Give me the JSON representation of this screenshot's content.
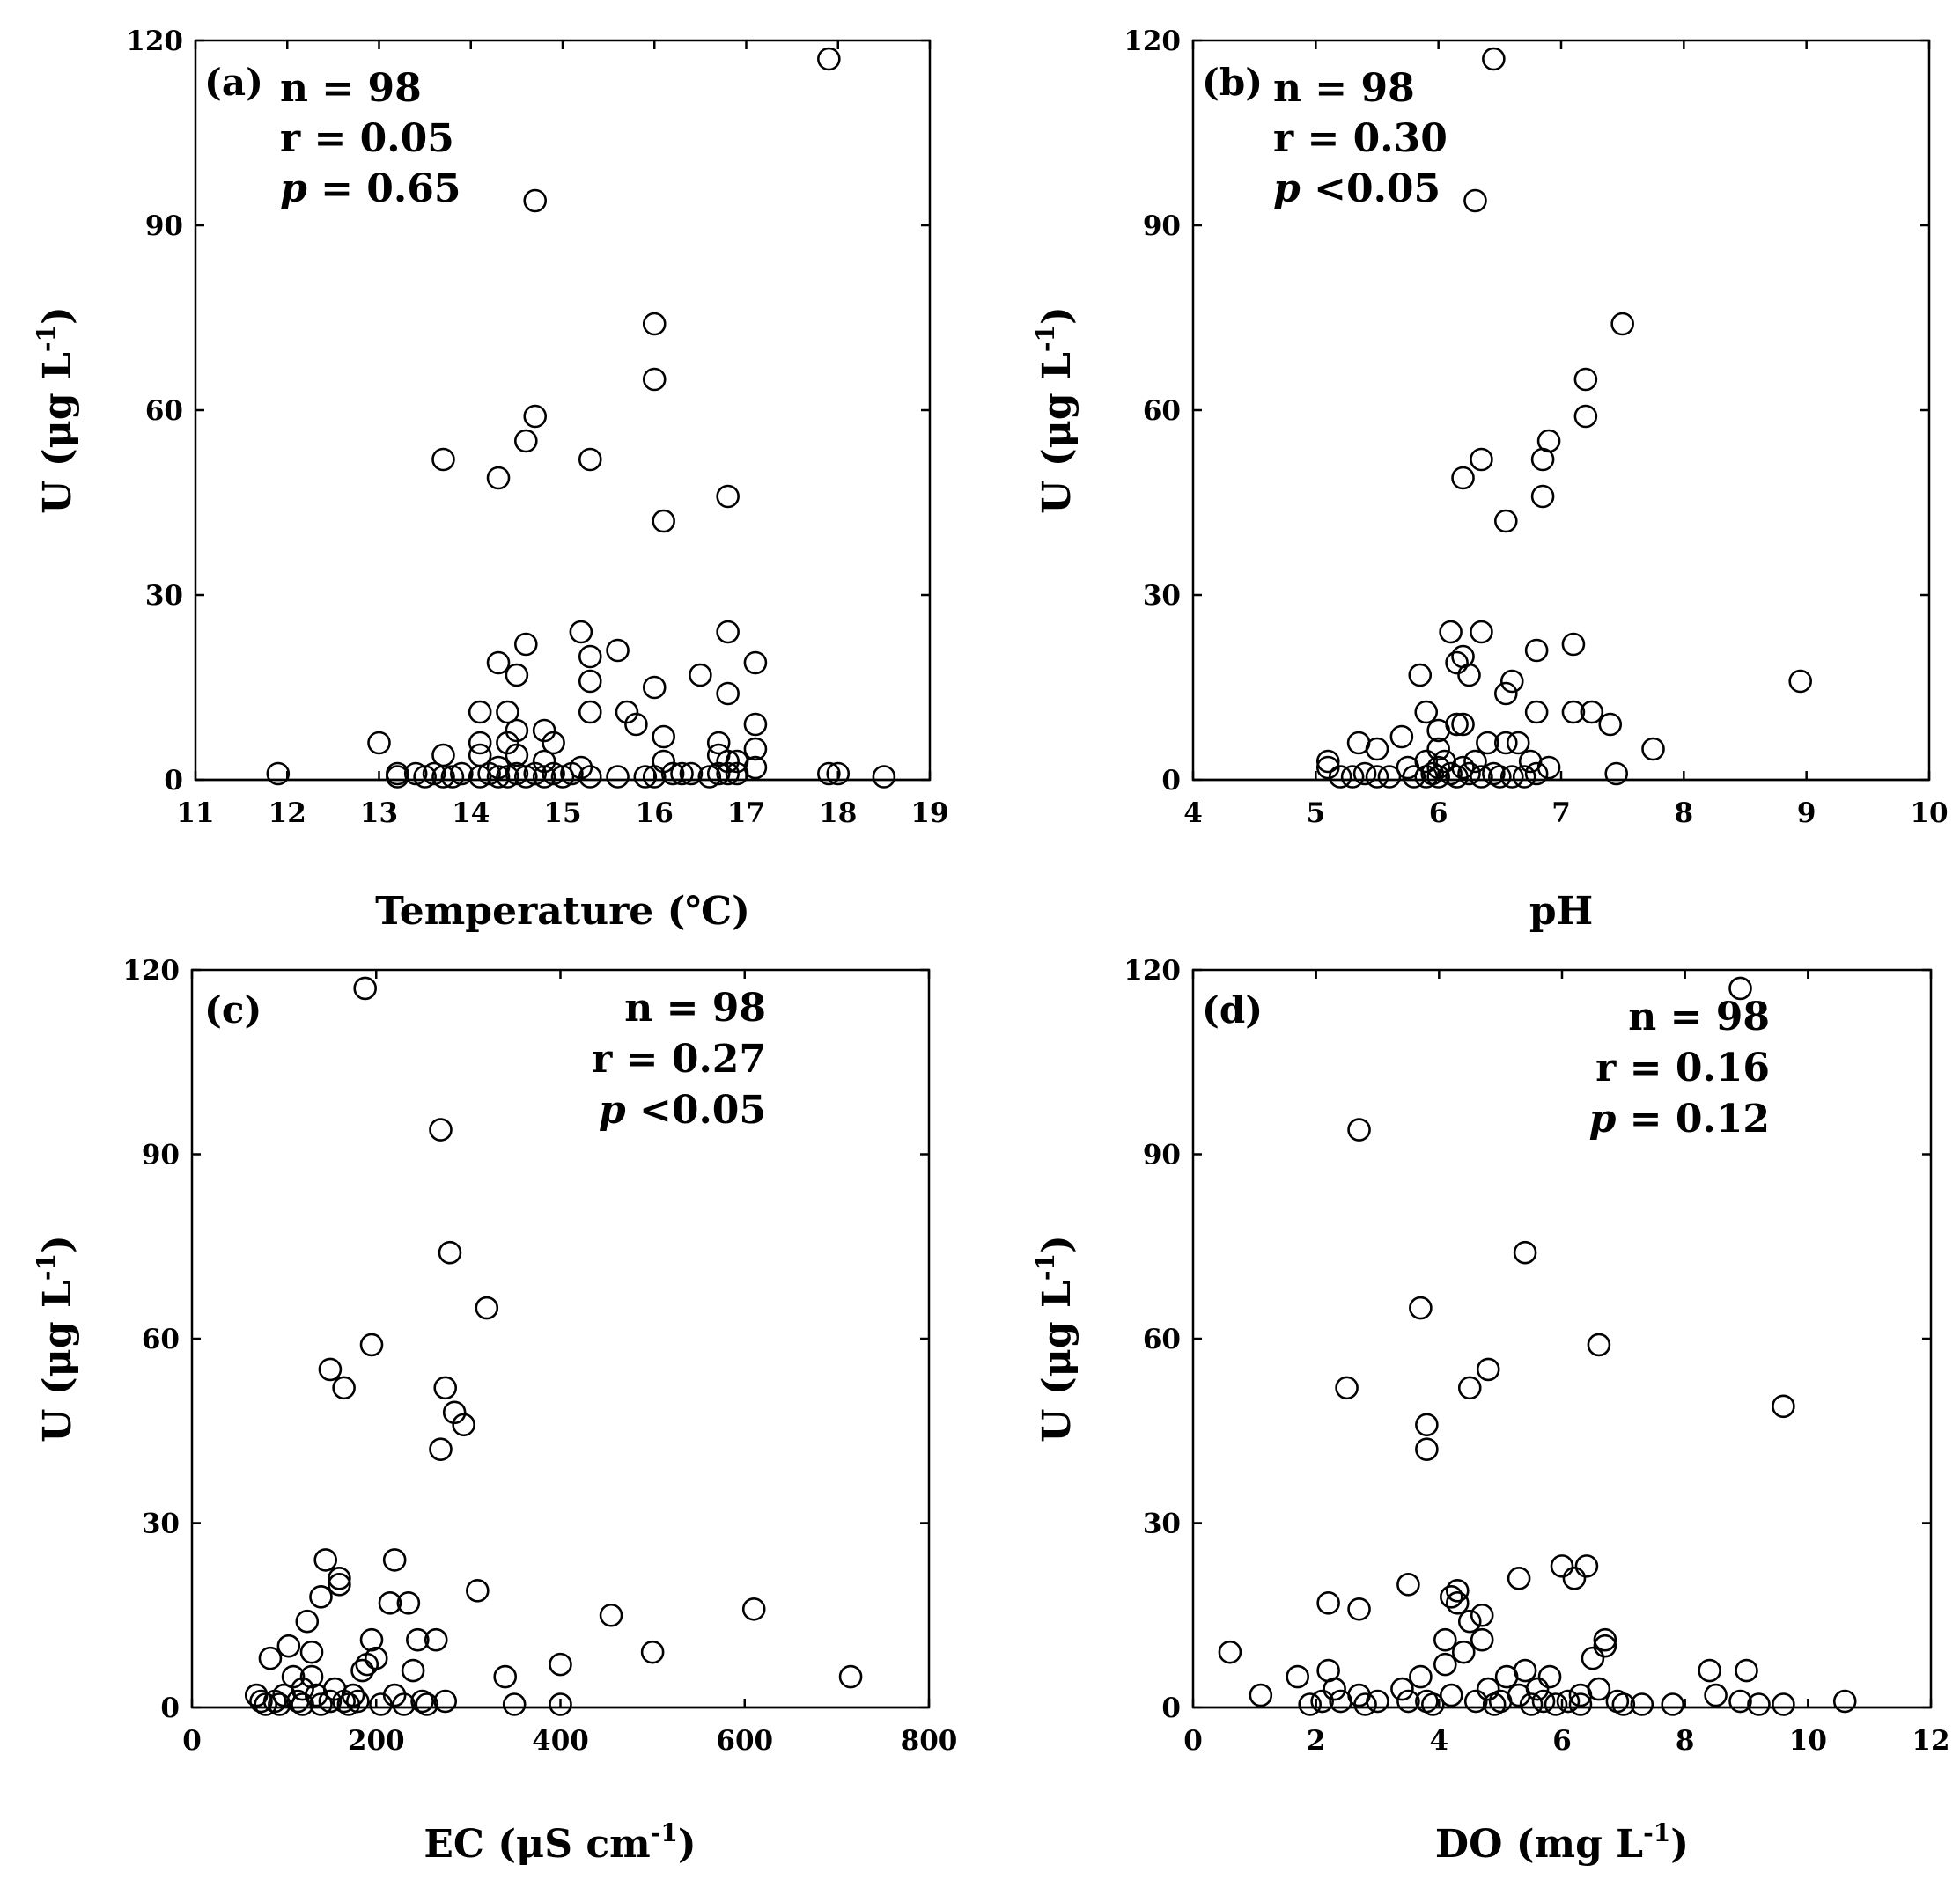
{
  "figure": {
    "y_axis_label": "U (μg L",
    "y_axis_label_sup": "-1",
    "y_axis_label_end": ")"
  },
  "chart_data": [
    {
      "type": "scatter",
      "panel": "(a)",
      "xlabel": "Temperature (℃)",
      "xlabel_sup": "",
      "xlabel_end": "",
      "ylabel": "U (μg L-1)",
      "xlim": [
        11,
        19
      ],
      "ylim": [
        0,
        120
      ],
      "xticks": [
        11,
        12,
        13,
        14,
        15,
        16,
        17,
        18,
        19
      ],
      "yticks": [
        0,
        30,
        60,
        90,
        120
      ],
      "stats": {
        "n": "n = 98",
        "r": "r = 0.05",
        "p_symbol": "p",
        "p_value": " = 0.65"
      },
      "stats_position": "top-left",
      "points": [
        [
          11.9,
          1
        ],
        [
          13,
          6
        ],
        [
          13.2,
          1
        ],
        [
          13.2,
          0.5
        ],
        [
          13.4,
          1
        ],
        [
          13.5,
          0.5
        ],
        [
          13.6,
          1
        ],
        [
          13.7,
          0.5
        ],
        [
          13.7,
          4
        ],
        [
          13.8,
          0.5
        ],
        [
          13.9,
          1
        ],
        [
          14.1,
          11
        ],
        [
          14.1,
          6
        ],
        [
          14.1,
          4
        ],
        [
          14.1,
          0.5
        ],
        [
          14.2,
          1
        ],
        [
          14.3,
          0.5
        ],
        [
          14.3,
          19
        ],
        [
          14.3,
          2
        ],
        [
          14.4,
          11
        ],
        [
          14.4,
          6
        ],
        [
          14.4,
          0.5
        ],
        [
          14.5,
          17
        ],
        [
          14.5,
          8
        ],
        [
          14.5,
          4
        ],
        [
          14.5,
          1
        ],
        [
          14.6,
          22
        ],
        [
          14.6,
          0.5
        ],
        [
          14.7,
          1
        ],
        [
          14.8,
          8
        ],
        [
          14.8,
          3
        ],
        [
          14.8,
          0.5
        ],
        [
          14.9,
          6
        ],
        [
          14.9,
          1
        ],
        [
          15,
          0.5
        ],
        [
          15.1,
          1
        ],
        [
          15.2,
          24
        ],
        [
          15.2,
          2
        ],
        [
          15.3,
          20
        ],
        [
          15.3,
          16
        ],
        [
          15.3,
          11
        ],
        [
          15.3,
          0.5
        ],
        [
          15.6,
          21
        ],
        [
          15.6,
          0.5
        ],
        [
          15.7,
          11
        ],
        [
          15.8,
          9
        ],
        [
          15.9,
          0.5
        ],
        [
          16,
          15
        ],
        [
          16,
          0.5
        ],
        [
          16.1,
          7
        ],
        [
          16.1,
          3
        ],
        [
          16.2,
          1
        ],
        [
          16.3,
          1
        ],
        [
          16.4,
          1
        ],
        [
          16.5,
          17
        ],
        [
          16.6,
          0.5
        ],
        [
          16.7,
          6
        ],
        [
          16.7,
          4
        ],
        [
          16.7,
          1
        ],
        [
          16.8,
          24
        ],
        [
          16.8,
          14
        ],
        [
          16.8,
          3
        ],
        [
          16.8,
          1
        ],
        [
          16.9,
          3
        ],
        [
          16.9,
          1
        ],
        [
          17.1,
          19
        ],
        [
          17.1,
          9
        ],
        [
          17.1,
          5
        ],
        [
          17.1,
          2
        ],
        [
          17.9,
          1
        ],
        [
          18,
          1
        ],
        [
          18.5,
          0.5
        ],
        [
          13.7,
          52
        ],
        [
          14.3,
          49
        ],
        [
          14.6,
          55
        ],
        [
          14.7,
          59
        ],
        [
          15.3,
          52
        ],
        [
          16,
          74
        ],
        [
          16,
          65
        ],
        [
          16.1,
          42
        ],
        [
          16.8,
          46
        ],
        [
          14.7,
          94
        ],
        [
          17.9,
          117
        ]
      ]
    },
    {
      "type": "scatter",
      "panel": "(b)",
      "xlabel": "pH",
      "xlabel_sup": "",
      "xlabel_end": "",
      "ylabel": "U (μg L-1)",
      "xlim": [
        4,
        10
      ],
      "ylim": [
        0,
        120
      ],
      "xticks": [
        4,
        5,
        6,
        7,
        8,
        9,
        10
      ],
      "yticks": [
        0,
        30,
        60,
        90,
        120
      ],
      "stats": {
        "n": "n = 98",
        "r": "r = 0.30",
        "p_symbol": "p",
        "p_value": " <0.05"
      },
      "stats_position": "top-left",
      "points": [
        [
          5.1,
          3
        ],
        [
          5.1,
          2
        ],
        [
          5.2,
          0.5
        ],
        [
          5.3,
          0.5
        ],
        [
          5.35,
          6
        ],
        [
          5.4,
          1
        ],
        [
          5.5,
          5
        ],
        [
          5.5,
          0.5
        ],
        [
          5.6,
          0.5
        ],
        [
          5.7,
          7
        ],
        [
          5.75,
          2
        ],
        [
          5.8,
          0.5
        ],
        [
          5.85,
          17
        ],
        [
          5.9,
          11
        ],
        [
          5.9,
          3
        ],
        [
          5.9,
          0.5
        ],
        [
          5.95,
          1
        ],
        [
          6,
          8
        ],
        [
          6,
          5
        ],
        [
          6,
          2
        ],
        [
          6,
          0.5
        ],
        [
          6.05,
          3
        ],
        [
          6.1,
          24
        ],
        [
          6.1,
          1
        ],
        [
          6.15,
          19
        ],
        [
          6.15,
          9
        ],
        [
          6.15,
          0.5
        ],
        [
          6.2,
          20
        ],
        [
          6.2,
          9
        ],
        [
          6.2,
          2
        ],
        [
          6.25,
          17
        ],
        [
          6.25,
          1
        ],
        [
          6.3,
          3
        ],
        [
          6.35,
          24
        ],
        [
          6.35,
          0.5
        ],
        [
          6.4,
          6
        ],
        [
          6.45,
          1
        ],
        [
          6.5,
          0.5
        ],
        [
          6.55,
          6
        ],
        [
          6.55,
          14
        ],
        [
          6.6,
          16
        ],
        [
          6.6,
          0.5
        ],
        [
          6.65,
          6
        ],
        [
          6.7,
          0.5
        ],
        [
          6.75,
          3
        ],
        [
          6.8,
          21
        ],
        [
          6.8,
          11
        ],
        [
          6.8,
          1
        ],
        [
          6.9,
          2
        ],
        [
          7.1,
          22
        ],
        [
          7.1,
          11
        ],
        [
          7.25,
          11
        ],
        [
          7.4,
          9
        ],
        [
          7.45,
          1
        ],
        [
          7.75,
          5
        ],
        [
          8.95,
          16
        ],
        [
          6.2,
          49
        ],
        [
          6.35,
          52
        ],
        [
          6.55,
          42
        ],
        [
          6.85,
          46
        ],
        [
          6.85,
          52
        ],
        [
          6.9,
          55
        ],
        [
          7.2,
          59
        ],
        [
          7.2,
          65
        ],
        [
          7.5,
          74
        ],
        [
          6.3,
          94
        ],
        [
          6.45,
          117
        ]
      ]
    },
    {
      "type": "scatter",
      "panel": "(c)",
      "xlabel": "EC (μS cm",
      "xlabel_sup": "-1",
      "xlabel_end": ")",
      "ylabel": "U (μg L-1)",
      "xlim": [
        0,
        800
      ],
      "ylim": [
        0,
        120
      ],
      "xticks": [
        0,
        200,
        400,
        600,
        800
      ],
      "yticks": [
        0,
        30,
        60,
        90,
        120
      ],
      "stats": {
        "n": "n = 98",
        "r": "r = 0.27",
        "p_symbol": "p",
        "p_value": " <0.05"
      },
      "stats_position": "top-right",
      "points": [
        [
          70,
          2
        ],
        [
          75,
          1
        ],
        [
          80,
          0.5
        ],
        [
          85,
          8
        ],
        [
          90,
          1
        ],
        [
          95,
          0.5
        ],
        [
          100,
          2
        ],
        [
          105,
          10
        ],
        [
          110,
          5
        ],
        [
          115,
          1
        ],
        [
          120,
          3
        ],
        [
          120,
          0.5
        ],
        [
          125,
          14
        ],
        [
          130,
          9
        ],
        [
          130,
          5
        ],
        [
          135,
          2
        ],
        [
          140,
          0.5
        ],
        [
          140,
          18
        ],
        [
          145,
          24
        ],
        [
          150,
          1
        ],
        [
          155,
          3
        ],
        [
          160,
          21
        ],
        [
          160,
          20
        ],
        [
          165,
          1
        ],
        [
          170,
          0.5
        ],
        [
          175,
          2
        ],
        [
          180,
          1
        ],
        [
          185,
          6
        ],
        [
          190,
          7
        ],
        [
          195,
          11
        ],
        [
          200,
          8
        ],
        [
          205,
          0.5
        ],
        [
          215,
          17
        ],
        [
          220,
          24
        ],
        [
          220,
          2
        ],
        [
          230,
          0.5
        ],
        [
          235,
          17
        ],
        [
          240,
          6
        ],
        [
          245,
          11
        ],
        [
          250,
          1
        ],
        [
          255,
          0.5
        ],
        [
          265,
          11
        ],
        [
          275,
          1
        ],
        [
          310,
          19
        ],
        [
          340,
          5
        ],
        [
          350,
          0.5
        ],
        [
          400,
          7
        ],
        [
          400,
          0.5
        ],
        [
          455,
          15
        ],
        [
          500,
          9
        ],
        [
          610,
          16
        ],
        [
          715,
          5
        ],
        [
          150,
          55
        ],
        [
          165,
          52
        ],
        [
          195,
          59
        ],
        [
          270,
          42
        ],
        [
          275,
          52
        ],
        [
          285,
          48
        ],
        [
          295,
          46
        ],
        [
          280,
          74
        ],
        [
          320,
          65
        ],
        [
          270,
          94
        ],
        [
          188,
          117
        ]
      ]
    },
    {
      "type": "scatter",
      "panel": "(d)",
      "xlabel": "DO (mg L",
      "xlabel_sup": "-1",
      "xlabel_end": ")",
      "ylabel": "U (μg L-1)",
      "xlim": [
        0,
        12
      ],
      "ylim": [
        0,
        120
      ],
      "xticks": [
        0,
        2,
        4,
        6,
        8,
        10,
        12
      ],
      "yticks": [
        0,
        30,
        60,
        90,
        120
      ],
      "stats": {
        "n": "n = 98",
        "r": "r = 0.16",
        "p_symbol": "p",
        "p_value": " = 0.12"
      },
      "stats_position": "top-right",
      "points": [
        [
          0.6,
          9
        ],
        [
          1.1,
          2
        ],
        [
          1.7,
          5
        ],
        [
          1.9,
          0.5
        ],
        [
          2.1,
          1
        ],
        [
          2.2,
          17
        ],
        [
          2.2,
          6
        ],
        [
          2.3,
          3
        ],
        [
          2.4,
          1
        ],
        [
          2.7,
          16
        ],
        [
          2.7,
          2
        ],
        [
          2.8,
          0.5
        ],
        [
          3,
          1
        ],
        [
          3.4,
          3
        ],
        [
          3.5,
          20
        ],
        [
          3.5,
          1
        ],
        [
          3.7,
          5
        ],
        [
          3.8,
          1
        ],
        [
          3.9,
          0.5
        ],
        [
          4.1,
          11
        ],
        [
          4.1,
          7
        ],
        [
          4.2,
          18
        ],
        [
          4.2,
          2
        ],
        [
          4.3,
          19
        ],
        [
          4.3,
          17
        ],
        [
          4.4,
          9
        ],
        [
          4.5,
          14
        ],
        [
          4.6,
          1
        ],
        [
          4.7,
          11
        ],
        [
          4.7,
          15
        ],
        [
          4.8,
          3
        ],
        [
          4.9,
          0.5
        ],
        [
          5,
          1
        ],
        [
          5.1,
          5
        ],
        [
          5.3,
          21
        ],
        [
          5.3,
          2
        ],
        [
          5.4,
          6
        ],
        [
          5.5,
          0.5
        ],
        [
          5.6,
          3
        ],
        [
          5.7,
          1
        ],
        [
          5.8,
          5
        ],
        [
          5.9,
          0.5
        ],
        [
          6,
          23
        ],
        [
          6.1,
          1
        ],
        [
          6.2,
          21
        ],
        [
          6.3,
          2
        ],
        [
          6.3,
          0.5
        ],
        [
          6.4,
          23
        ],
        [
          6.5,
          8
        ],
        [
          6.6,
          3
        ],
        [
          6.7,
          10
        ],
        [
          6.7,
          11
        ],
        [
          6.9,
          1
        ],
        [
          7,
          0.5
        ],
        [
          7.3,
          0.5
        ],
        [
          7.8,
          0.5
        ],
        [
          8.4,
          6
        ],
        [
          8.5,
          2
        ],
        [
          8.9,
          1
        ],
        [
          9,
          6
        ],
        [
          9.2,
          0.5
        ],
        [
          9.6,
          0.5
        ],
        [
          10.6,
          1
        ],
        [
          2.5,
          52
        ],
        [
          3.7,
          65
        ],
        [
          3.8,
          42
        ],
        [
          3.8,
          46
        ],
        [
          4.5,
          52
        ],
        [
          4.8,
          55
        ],
        [
          6.6,
          59
        ],
        [
          5.4,
          74
        ],
        [
          9.6,
          49
        ],
        [
          2.7,
          94
        ],
        [
          8.9,
          117
        ]
      ]
    }
  ]
}
